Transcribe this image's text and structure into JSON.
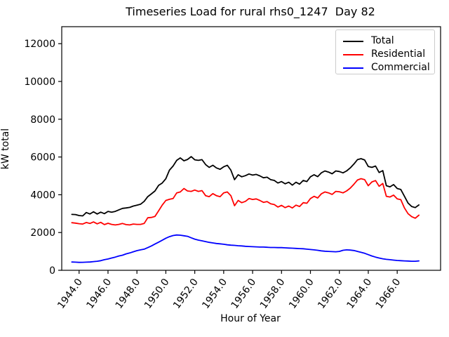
{
  "figure": {
    "title": "Timeseries Load for rural rhs0_1247  Day 82",
    "xlabel": "Hour of Year",
    "ylabel": "kW total"
  },
  "chart_data": {
    "type": "line",
    "title": "Timeseries Load for rural rhs0_1247  Day 82",
    "xlabel": "Hour of Year",
    "ylabel": "kW total",
    "grid": false,
    "legend_position": "upper right",
    "xlim": [
      1942.8,
      1969.0
    ],
    "ylim": [
      0,
      12900
    ],
    "x_ticks": [
      1944.0,
      1946.0,
      1948.0,
      1950.0,
      1952.0,
      1954.0,
      1956.0,
      1958.0,
      1960.0,
      1962.0,
      1964.0,
      1966.0
    ],
    "y_ticks": [
      0,
      2000,
      4000,
      6000,
      8000,
      10000,
      12000
    ],
    "x_start": 1943.5,
    "x_step": 0.25,
    "x": [
      1943.5,
      1943.75,
      1944.0,
      1944.25,
      1944.5,
      1944.75,
      1945.0,
      1945.25,
      1945.5,
      1945.75,
      1946.0,
      1946.25,
      1946.5,
      1946.75,
      1947.0,
      1947.25,
      1947.5,
      1947.75,
      1948.0,
      1948.25,
      1948.5,
      1948.75,
      1949.0,
      1949.25,
      1949.5,
      1949.75,
      1950.0,
      1950.25,
      1950.5,
      1950.75,
      1951.0,
      1951.25,
      1951.5,
      1951.75,
      1952.0,
      1952.25,
      1952.5,
      1952.75,
      1953.0,
      1953.25,
      1953.5,
      1953.75,
      1954.0,
      1954.25,
      1954.5,
      1954.75,
      1955.0,
      1955.25,
      1955.5,
      1955.75,
      1956.0,
      1956.25,
      1956.5,
      1956.75,
      1957.0,
      1957.25,
      1957.5,
      1957.75,
      1958.0,
      1958.25,
      1958.5,
      1958.75,
      1959.0,
      1959.25,
      1959.5,
      1959.75,
      1960.0,
      1960.25,
      1960.5,
      1960.75,
      1961.0,
      1961.25,
      1961.5,
      1961.75,
      1962.0,
      1962.25,
      1962.5,
      1962.75,
      1963.0,
      1963.25,
      1963.5,
      1963.75,
      1964.0,
      1964.25,
      1964.5,
      1964.75,
      1965.0,
      1965.25,
      1965.5,
      1965.75,
      1966.0,
      1966.25,
      1966.5,
      1966.75,
      1967.0,
      1967.25,
      1967.5
    ],
    "series": [
      {
        "name": "Total",
        "color": "#000000",
        "values": [
          2960,
          2950,
          2900,
          2880,
          3060,
          2980,
          3100,
          2980,
          3080,
          3000,
          3120,
          3080,
          3120,
          3200,
          3280,
          3300,
          3330,
          3400,
          3450,
          3500,
          3650,
          3900,
          4050,
          4200,
          4500,
          4620,
          4850,
          5300,
          5520,
          5820,
          5950,
          5800,
          5870,
          6020,
          5850,
          5820,
          5860,
          5600,
          5450,
          5560,
          5420,
          5350,
          5480,
          5560,
          5300,
          4800,
          5060,
          4950,
          5010,
          5100,
          5040,
          5080,
          5000,
          4900,
          4930,
          4800,
          4760,
          4620,
          4700,
          4580,
          4660,
          4510,
          4660,
          4560,
          4760,
          4700,
          4950,
          5060,
          4960,
          5160,
          5260,
          5200,
          5110,
          5260,
          5230,
          5160,
          5260,
          5420,
          5620,
          5860,
          5910,
          5840,
          5500,
          5450,
          5520,
          5180,
          5280,
          4480,
          4420,
          4540,
          4330,
          4280,
          3920,
          3560,
          3380,
          3320,
          3460
        ]
      },
      {
        "name": "Residential",
        "color": "#ff0000",
        "values": [
          2520,
          2500,
          2470,
          2450,
          2530,
          2480,
          2560,
          2460,
          2540,
          2420,
          2490,
          2430,
          2400,
          2430,
          2480,
          2420,
          2400,
          2450,
          2430,
          2430,
          2480,
          2780,
          2800,
          2850,
          3150,
          3450,
          3700,
          3760,
          3800,
          4100,
          4150,
          4330,
          4200,
          4180,
          4250,
          4180,
          4220,
          3950,
          3900,
          4060,
          3950,
          3900,
          4100,
          4150,
          3950,
          3420,
          3700,
          3580,
          3650,
          3800,
          3750,
          3780,
          3700,
          3600,
          3640,
          3520,
          3480,
          3350,
          3440,
          3320,
          3400,
          3300,
          3450,
          3380,
          3580,
          3550,
          3800,
          3920,
          3830,
          4050,
          4150,
          4100,
          4020,
          4180,
          4160,
          4100,
          4200,
          4350,
          4550,
          4780,
          4850,
          4800,
          4480,
          4680,
          4750,
          4450,
          4600,
          3920,
          3880,
          3980,
          3780,
          3740,
          3300,
          3000,
          2840,
          2760,
          2920
        ]
      },
      {
        "name": "Commercial",
        "color": "#0000ff",
        "values": [
          440,
          430,
          420,
          425,
          430,
          440,
          460,
          480,
          510,
          560,
          600,
          650,
          700,
          760,
          800,
          870,
          920,
          980,
          1040,
          1080,
          1120,
          1200,
          1290,
          1390,
          1490,
          1590,
          1700,
          1780,
          1840,
          1870,
          1860,
          1830,
          1800,
          1720,
          1650,
          1600,
          1560,
          1520,
          1480,
          1450,
          1420,
          1400,
          1380,
          1350,
          1330,
          1320,
          1300,
          1290,
          1270,
          1260,
          1250,
          1240,
          1230,
          1230,
          1220,
          1210,
          1210,
          1200,
          1200,
          1190,
          1180,
          1170,
          1160,
          1150,
          1140,
          1120,
          1100,
          1080,
          1060,
          1030,
          1010,
          1000,
          990,
          980,
          1000,
          1060,
          1080,
          1070,
          1050,
          1000,
          950,
          900,
          830,
          760,
          700,
          650,
          610,
          580,
          560,
          540,
          520,
          510,
          500,
          490,
          480,
          480,
          500
        ]
      }
    ]
  }
}
